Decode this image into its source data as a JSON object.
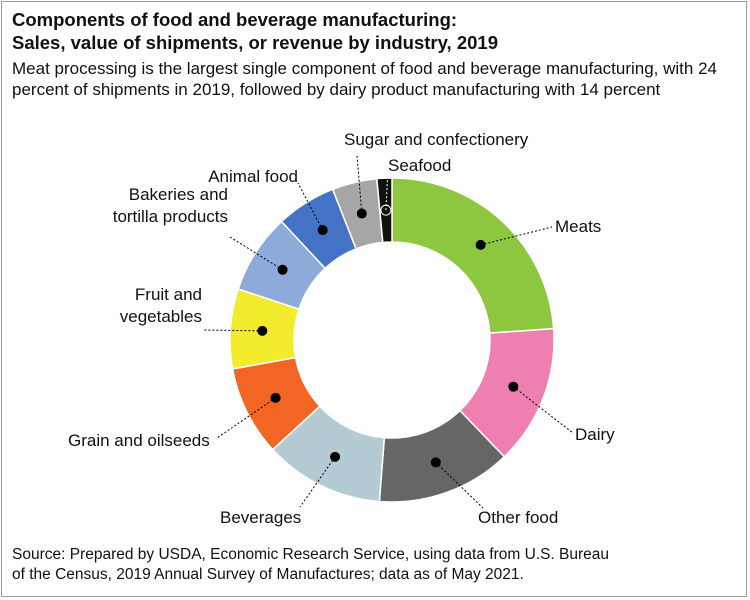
{
  "title_line1": "Components of food and beverage manufacturing:",
  "title_line2": "Sales, value of shipments, or revenue by industry, 2019",
  "subtitle": "Meat processing is the largest single component of food and beverage manufacturing, with 24 percent of shipments in 2019, followed by dairy product manufacturing with 14 percent",
  "source_line1": "Source: Prepared by USDA, Economic Research Service, using data from U.S. Bureau",
  "source_line2": "of the Census, 2019 Annual Survey of Manufactures; data as of May 2021.",
  "chart_data": {
    "type": "pie",
    "style": "donut",
    "unit": "percent of shipments",
    "slices": [
      {
        "label": [
          "Meats"
        ],
        "value": 24,
        "color": "#8dc63f"
      },
      {
        "label": [
          "Dairy"
        ],
        "value": 14,
        "color": "#ef7fb0"
      },
      {
        "label": [
          "Other food"
        ],
        "value": 13.5,
        "color": "#666666"
      },
      {
        "label": [
          "Beverages"
        ],
        "value": 12,
        "color": "#b4cbd3"
      },
      {
        "label": [
          "Grain and oilseeds"
        ],
        "value": 9,
        "color": "#f26522"
      },
      {
        "label": [
          "Fruit and",
          "vegetables"
        ],
        "value": 8,
        "color": "#f2ec2d"
      },
      {
        "label": [
          "Bakeries and",
          "tortilla products"
        ],
        "value": 8,
        "color": "#8eaadb"
      },
      {
        "label": [
          "Animal food"
        ],
        "value": 6,
        "color": "#4472c4"
      },
      {
        "label": [
          "Sugar and confectionery"
        ],
        "value": 4.5,
        "color": "#a6a6a6"
      },
      {
        "label": [
          "Seafood"
        ],
        "value": 1.5,
        "color": "#111111"
      }
    ]
  }
}
